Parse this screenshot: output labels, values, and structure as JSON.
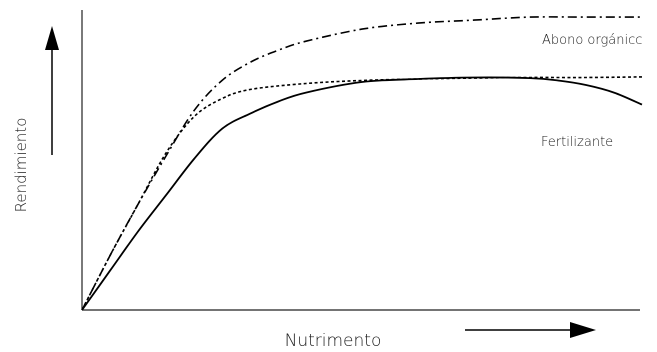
{
  "chart_data": {
    "type": "line",
    "xlabel": "Nutrimento",
    "ylabel": "Rendimiento",
    "xlim": [
      0,
      100
    ],
    "ylim": [
      0,
      100
    ],
    "grid": false,
    "series": [
      {
        "name": "Abono orgánicc",
        "style": "dash-dot",
        "x": [
          0,
          5,
          10,
          15,
          20,
          25,
          30,
          35,
          40,
          50,
          60,
          70,
          80,
          90,
          100
        ],
        "y": [
          0,
          18,
          35,
          51,
          66,
          76,
          82,
          86,
          89,
          93,
          95,
          96,
          97,
          97,
          97
        ]
      },
      {
        "name": "",
        "style": "dotted",
        "x": [
          0,
          5,
          10,
          15,
          20,
          25,
          30,
          40,
          50,
          60,
          70,
          80,
          90,
          100
        ],
        "y": [
          0,
          18,
          35,
          52,
          64,
          70,
          73,
          75,
          76,
          76.5,
          76.8,
          77,
          77,
          77.2
        ]
      },
      {
        "name": "Fertilizante",
        "style": "solid",
        "x": [
          0,
          5,
          10,
          15,
          20,
          25,
          30,
          35,
          40,
          50,
          60,
          70,
          80,
          85,
          90,
          95,
          100
        ],
        "y": [
          0,
          13,
          26,
          38,
          50,
          60,
          65,
          69,
          72,
          75.5,
          76.5,
          77,
          76.8,
          76,
          74.5,
          72,
          68
        ]
      }
    ],
    "annotations": {
      "organic_label": "Abono orgánicc",
      "fert_label": "Fertilizante"
    }
  }
}
